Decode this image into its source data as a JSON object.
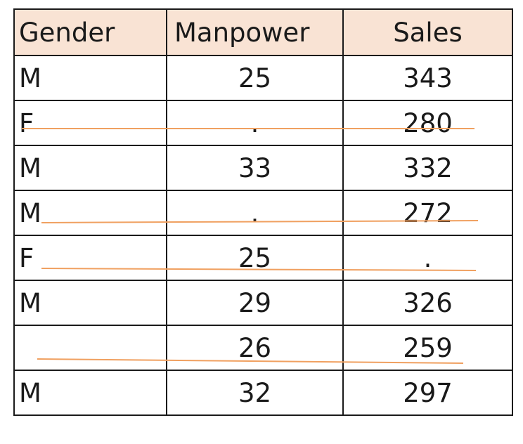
{
  "table": {
    "headers": [
      "Gender",
      "Manpower",
      "Sales"
    ],
    "rows": [
      {
        "gender": "M",
        "manpower": "25",
        "sales": "343",
        "struck": false
      },
      {
        "gender": "F",
        "manpower": ".",
        "sales": "280",
        "struck": true
      },
      {
        "gender": "M",
        "manpower": "33",
        "sales": "332",
        "struck": false
      },
      {
        "gender": "M",
        "manpower": ".",
        "sales": "272",
        "struck": true
      },
      {
        "gender": "F",
        "manpower": "25",
        "sales": ".",
        "struck": true
      },
      {
        "gender": "M",
        "manpower": "29",
        "sales": "326",
        "struck": false
      },
      {
        "gender": "",
        "manpower": "26",
        "sales": "259",
        "struck": true
      },
      {
        "gender": "M",
        "manpower": "32",
        "sales": "297",
        "struck": false
      }
    ]
  },
  "colors": {
    "header_fill": "#f9e3d4",
    "strike_line": "#f0a060",
    "border": "#1a1a1a"
  }
}
